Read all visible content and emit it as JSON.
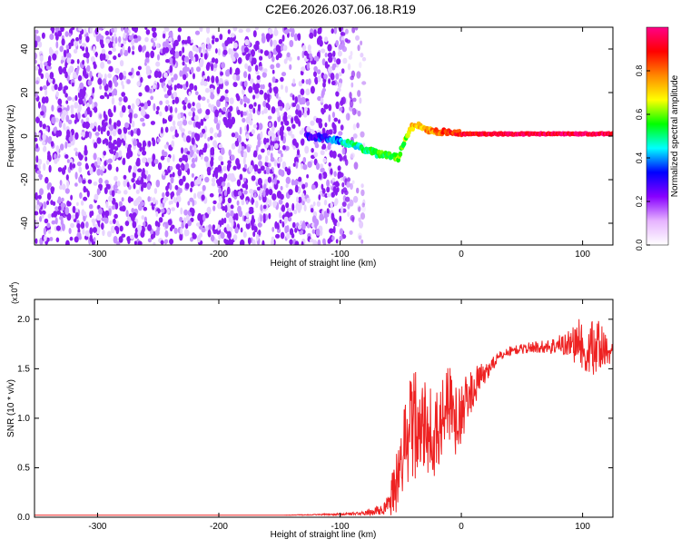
{
  "figure": {
    "title": "C2E6.2026.037.06.18.R19"
  },
  "chart_data": [
    {
      "type": "heatmap",
      "xlabel": "Height of straight line (km)",
      "ylabel": "Frequency (Hz)",
      "xlim": [
        -352,
        125
      ],
      "ylim": [
        -50,
        50
      ],
      "xticks": [
        -300,
        -200,
        -100,
        0,
        100
      ],
      "yticks": [
        -40,
        -20,
        0,
        20,
        40
      ],
      "grid": false,
      "colorbar": {
        "label": "Normalized spectral amplitude",
        "range": [
          0,
          1
        ],
        "ticks": [
          "0.0",
          "0.2",
          "0.4",
          "0.6",
          "0.8"
        ],
        "colors": [
          "#ffffff",
          "#e6b3ff",
          "#8800ff",
          "#0000ff",
          "#00ffff",
          "#00ff00",
          "#ffff00",
          "#ff8800",
          "#ff0000",
          "#ff0088"
        ]
      },
      "signal_line": {
        "description_points_x": [
          -128,
          -110,
          -95,
          -80,
          -70,
          -60,
          -52,
          -47,
          -42,
          -35,
          -28,
          -20,
          -10,
          0,
          20,
          60,
          100,
          125
        ],
        "frequency_y": [
          0,
          -1,
          -3,
          -6,
          -8,
          -9,
          -10,
          -3,
          4,
          5,
          3,
          2,
          2,
          1,
          1,
          1,
          1,
          1
        ],
        "amplitude": [
          0.25,
          0.35,
          0.45,
          0.5,
          0.55,
          0.55,
          0.6,
          0.6,
          0.7,
          0.75,
          0.75,
          0.8,
          0.85,
          0.9,
          0.92,
          0.95,
          0.95,
          0.95
        ]
      }
    },
    {
      "type": "line",
      "xlabel": "Height of straight line (km)",
      "ylabel": "SNR (10 * v/v)",
      "y_multiplier": "(x10^4)",
      "y_multiplier_base": "(x10",
      "y_multiplier_exp": "4",
      "y_multiplier_close": ")",
      "xlim": [
        -352,
        125
      ],
      "ylim": [
        0,
        2.2
      ],
      "xticks": [
        -300,
        -200,
        -100,
        0,
        100
      ],
      "yticks": [
        "0.0",
        "0.5",
        "1.0",
        "1.5",
        "2.0"
      ],
      "color": "#ee2222",
      "grid": false,
      "series": [
        {
          "x": [
            -352,
            -300,
            -250,
            -200,
            -150,
            -100,
            -80,
            -70,
            -60,
            -55,
            -50,
            -45,
            -40,
            -35,
            -30,
            -25,
            -20,
            -15,
            -10,
            -5,
            0,
            5,
            10,
            15,
            20,
            25,
            30,
            35,
            40,
            50,
            60,
            70,
            80,
            90,
            100,
            110,
            125
          ],
          "y": [
            0.02,
            0.02,
            0.02,
            0.02,
            0.02,
            0.03,
            0.04,
            0.06,
            0.12,
            0.3,
            0.55,
            0.8,
            0.9,
            1.1,
            1.0,
            0.85,
            0.9,
            1.05,
            1.15,
            1.0,
            1.05,
            1.2,
            1.3,
            1.4,
            1.45,
            1.55,
            1.6,
            1.65,
            1.68,
            1.7,
            1.72,
            1.72,
            1.74,
            1.76,
            1.75,
            1.72,
            1.68
          ],
          "noise": [
            0,
            0,
            0,
            0,
            0,
            0.01,
            0.02,
            0.05,
            0.1,
            0.3,
            0.4,
            0.5,
            0.55,
            0.55,
            0.5,
            0.5,
            0.45,
            0.45,
            0.4,
            0.35,
            0.3,
            0.25,
            0.2,
            0.15,
            0.1,
            0.08,
            0.06,
            0.05,
            0.05,
            0.05,
            0.06,
            0.07,
            0.1,
            0.15,
            0.3,
            0.35,
            0.1
          ]
        }
      ]
    }
  ]
}
